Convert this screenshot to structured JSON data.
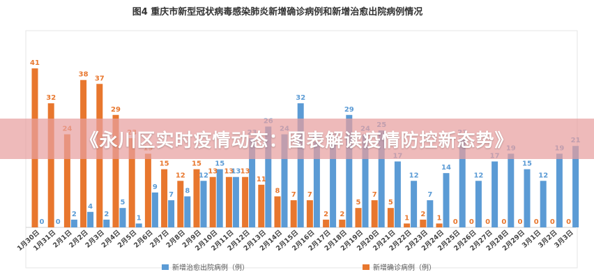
{
  "overlay_banner": "《永川区实时疫情动态：图表解读疫情防控新态势》",
  "chart_data": {
    "type": "bar",
    "title": "图4  重庆市新型冠状病毒感染肺炎新增确诊病例和新增治愈出院病例情况",
    "categories": [
      "1月30日",
      "1月31日",
      "2月1日",
      "2月2日",
      "2月3日",
      "2月4日",
      "2月5日",
      "2月6日",
      "2月7日",
      "2月8日",
      "2月9日",
      "2月10日",
      "2月11日",
      "2月12日",
      "2月13日",
      "2月14日",
      "2月15日",
      "2月16日",
      "2月17日",
      "2月18日",
      "2月19日",
      "2月20日",
      "2月21日",
      "2月22日",
      "2月23日",
      "2月24日",
      "2月25日",
      "2月26日",
      "2月27日",
      "2月28日",
      "2月29日",
      "3月1日",
      "3月2日",
      "3月3日"
    ],
    "series": [
      {
        "name": "新增确诊病例（例）",
        "color": "#e8772e",
        "values": [
          41,
          32,
          24,
          38,
          37,
          29,
          23,
          19,
          15,
          12,
          15,
          13,
          13,
          13,
          11,
          8,
          7,
          7,
          2,
          2,
          5,
          7,
          5,
          1,
          2,
          1,
          0,
          0,
          0,
          0,
          0,
          0,
          0,
          0
        ]
      },
      {
        "name": "新增治愈出院病例（例）",
        "color": "#5b9bd5",
        "values": [
          0,
          0,
          2,
          4,
          2,
          5,
          1,
          9,
          7,
          8,
          12,
          15,
          13,
          23,
          26,
          24,
          32,
          22,
          22,
          29,
          24,
          25,
          17,
          12,
          7,
          14,
          23,
          12,
          17,
          19,
          15,
          12,
          19,
          21
        ]
      }
    ],
    "ylim": [
      0,
      45
    ],
    "grid": false,
    "legend_position": "bottom"
  }
}
